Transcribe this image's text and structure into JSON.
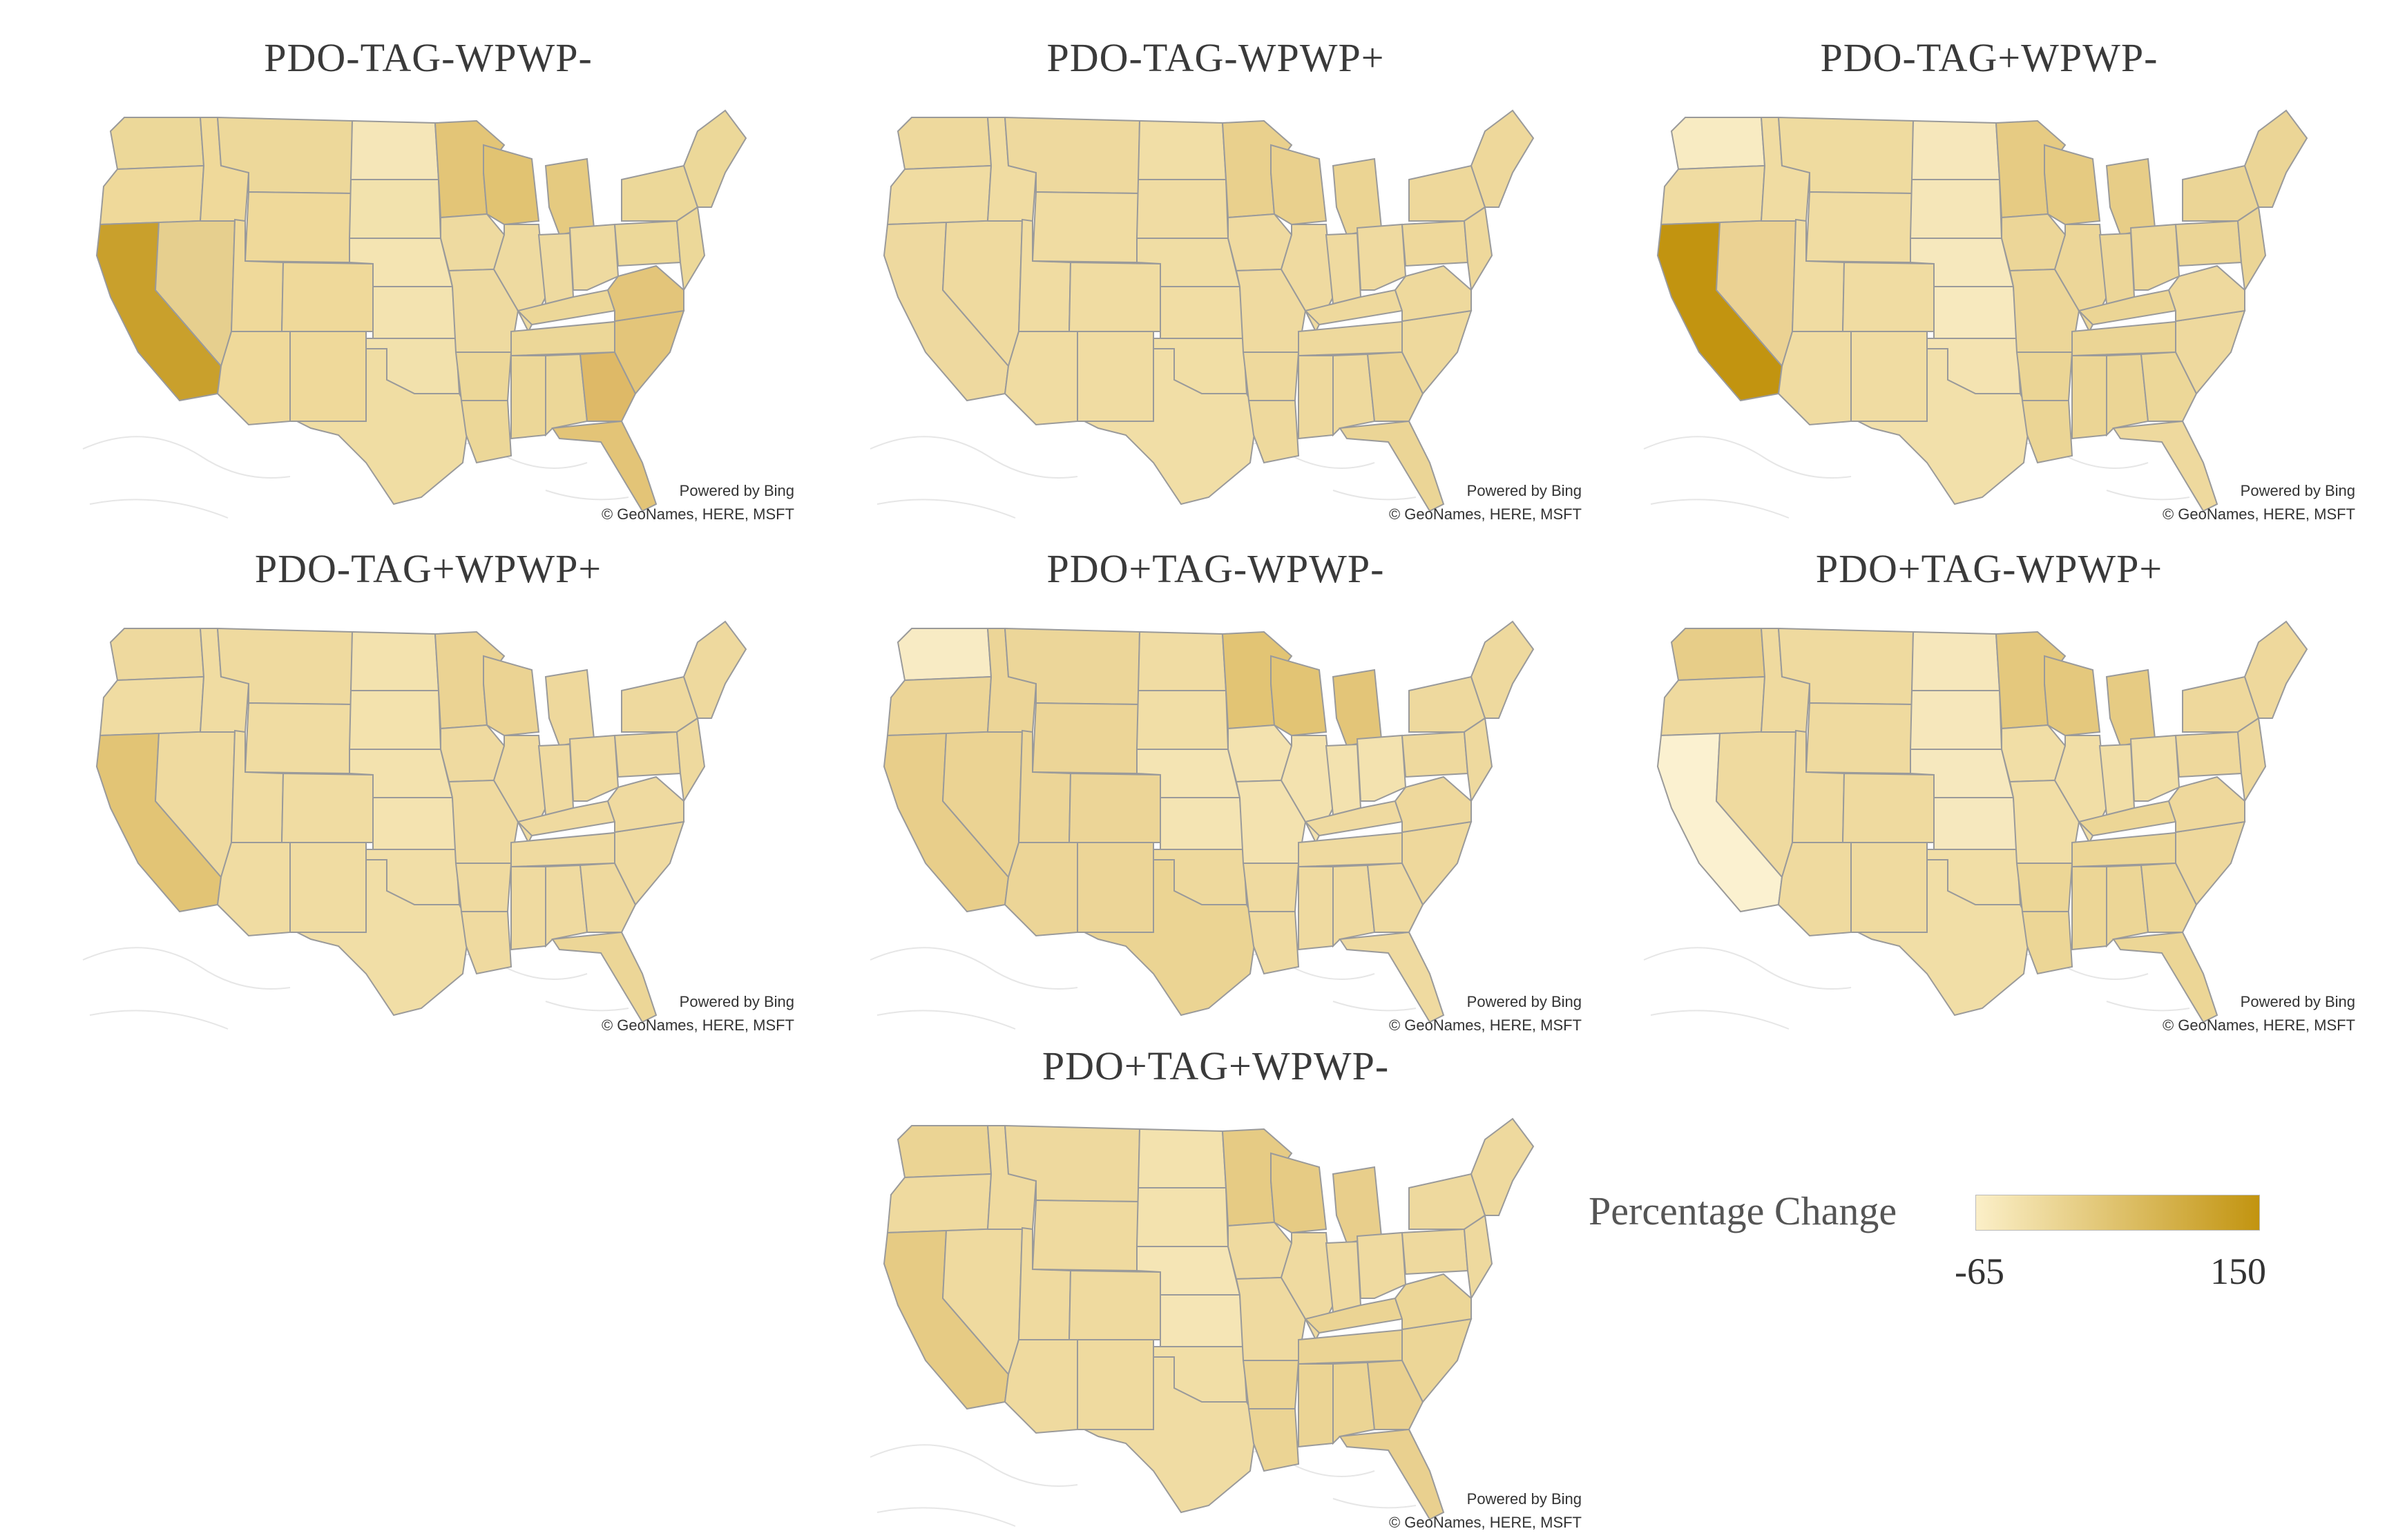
{
  "legend": {
    "title": "Percentage Change",
    "min_label": "-65",
    "max_label": "150",
    "min_color": "#fbefc8",
    "max_color": "#c29410"
  },
  "attribution": {
    "line1": "Powered by Bing",
    "line2": "© GeoNames, HERE, MSFT"
  },
  "panels": [
    {
      "title": "PDO-TAG-WPWP-",
      "fills": {
        "west": "#efd99a",
        "wa": "#ecd899",
        "ca": "#c9a02c",
        "nv": "#e6cf8e",
        "mt": "#edd89a",
        "nd": "#f5e6b8",
        "sd": "#f2e2ad",
        "ne": "#f4e4b2",
        "ks": "#f3e3b0",
        "ok": "#f2e1ac",
        "tx": "#f0dda3",
        "mn": "#e3c577",
        "wi": "#e1c372",
        "mi": "#e5ca80",
        "midwest": "#eedaa0",
        "south": "#ecd798",
        "ga": "#deb967",
        "fl": "#e3c477",
        "carolinas": "#e3c57a",
        "northeast": "#ecd899"
      }
    },
    {
      "title": "PDO-TAG-WPWP+",
      "fills": {
        "west": "#f0dca2",
        "wa": "#eed99d",
        "ca": "#eed99f",
        "nv": "#efda9f",
        "mt": "#eed99e",
        "nd": "#f1dea6",
        "sd": "#f0dca3",
        "ne": "#f0dda4",
        "ks": "#f1dda4",
        "ok": "#f1dea5",
        "tx": "#f1dea6",
        "mn": "#e9d08d",
        "wi": "#e9d08d",
        "mi": "#ebd493",
        "midwest": "#efdaa0",
        "south": "#eed99d",
        "ga": "#ebd494",
        "fl": "#ebd596",
        "carolinas": "#eed99d",
        "northeast": "#eed89b"
      }
    },
    {
      "title": "PDO-TAG+WPWP-",
      "fills": {
        "west": "#f0dca2",
        "wa": "#f8ebc2",
        "ca": "#c29410",
        "nv": "#ebd293",
        "mt": "#efdb9f",
        "nd": "#f6e7bb",
        "sd": "#f5e6b8",
        "ne": "#f6e8bd",
        "ks": "#f7e9be",
        "ok": "#f4e3b1",
        "tx": "#f2e0aa",
        "mn": "#e6cb83",
        "wi": "#e5ca81",
        "mi": "#e7cd87",
        "midwest": "#ecd698",
        "south": "#ebd595",
        "ga": "#ecd798",
        "fl": "#eed99e",
        "carolinas": "#eed99e",
        "northeast": "#ebd596"
      }
    },
    {
      "title": "PDO-TAG+WPWP+",
      "fills": {
        "west": "#f0dca2",
        "wa": "#eed99e",
        "ca": "#e2c475",
        "nv": "#efda9f",
        "mt": "#efda9f",
        "nd": "#f3e2ae",
        "sd": "#f3e2ad",
        "ne": "#f3e2ae",
        "ks": "#f4e3b0",
        "ok": "#f1dea7",
        "tx": "#f1dea6",
        "mn": "#ebd393",
        "wi": "#ebd393",
        "mi": "#eed89c",
        "midwest": "#efdaa0",
        "south": "#efdaa0",
        "ga": "#eed99e",
        "fl": "#ecd697",
        "carolinas": "#efdaa0",
        "northeast": "#eed99e"
      }
    },
    {
      "title": "PDO+TAG-WPWP-",
      "fills": {
        "west": "#ecd597",
        "wa": "#f8ebc4",
        "ca": "#e8ce8a",
        "nv": "#ebd393",
        "mt": "#ecd699",
        "nd": "#f0dca3",
        "sd": "#f1dea6",
        "ne": "#f4e4b3",
        "ks": "#f4e4b3",
        "ok": "#eed99d",
        "tx": "#ebd493",
        "mn": "#e2c474",
        "wi": "#e2c474",
        "mi": "#e3c578",
        "midwest": "#f3e2af",
        "south": "#efdaa0",
        "ga": "#efdaa0",
        "fl": "#efdaa0",
        "carolinas": "#eed89c",
        "northeast": "#eed99e"
      }
    },
    {
      "title": "PDO+TAG-WPWP+",
      "fills": {
        "west": "#efda9f",
        "wa": "#e7cd88",
        "ca": "#fbf1d0",
        "nv": "#efda9f",
        "mt": "#efda9f",
        "nd": "#f6e7bb",
        "sd": "#f6e7bb",
        "ne": "#f6e8be",
        "ks": "#f6e8be",
        "ok": "#f1dea6",
        "tx": "#f1dea6",
        "mn": "#e4c87d",
        "wi": "#e4c87d",
        "mi": "#e6cb83",
        "midwest": "#f1dea6",
        "south": "#ecd696",
        "ga": "#ecd696",
        "fl": "#ecd696",
        "carolinas": "#eed89c",
        "northeast": "#eed89c"
      }
    },
    {
      "title": "PDO+TAG+WPWP-",
      "fills": {
        "west": "#efda9f",
        "wa": "#ebd494",
        "ca": "#e6cb84",
        "nv": "#efda9f",
        "mt": "#eed99e",
        "nd": "#f3e2ae",
        "sd": "#f3e2ae",
        "ne": "#f5e5b5",
        "ks": "#f5e5b5",
        "ok": "#f1dea6",
        "tx": "#f0dca3",
        "mn": "#e6cb84",
        "wi": "#e6cb84",
        "mi": "#e8ce8b",
        "midwest": "#efdaa0",
        "south": "#ebd494",
        "ga": "#e9d08f",
        "fl": "#e9d08f",
        "carolinas": "#ecd697",
        "northeast": "#eed99e"
      }
    }
  ]
}
